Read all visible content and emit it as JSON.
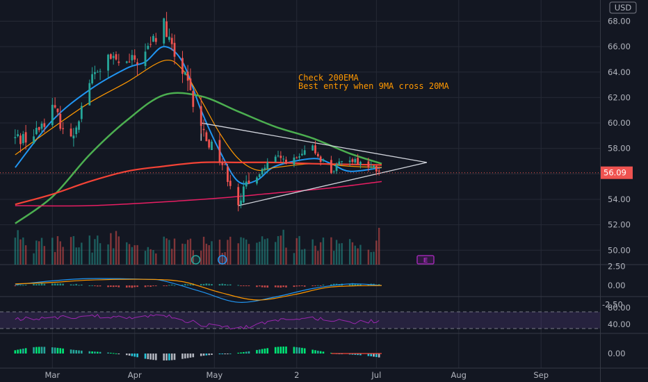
{
  "currency_label": "USD",
  "last_price_label": "56.09",
  "annotations": [
    "Check 200EMA",
    "Best entry when 9MA cross 20MA"
  ],
  "event_badges": [
    "E"
  ],
  "colors": {
    "background": "#131722",
    "grid": "#262a36",
    "up": "#26a69a",
    "down": "#ef5350",
    "ema9": "#2196f3",
    "ema20": "#ff9800",
    "ma50": "#4caf50",
    "ma100": "#f44336",
    "ma200": "#e91e63",
    "triangle": "#d1d4dc",
    "macd_line": "#2196f3",
    "signal_line": "#ff9800",
    "rsi": "#9c27b0",
    "annotation": "#ff9800",
    "event": "#9c27b0"
  },
  "chart_data": [
    {
      "type": "candlestick",
      "title": "",
      "x_tick_labels": [
        "Mar",
        "Apr",
        "May",
        "2",
        "Jul",
        "Aug",
        "Sep"
      ],
      "y_tick_labels": [
        "68.00",
        "66.00",
        "64.00",
        "62.00",
        "60.00",
        "58.00",
        "56.00",
        "54.00",
        "52.00",
        "50.00"
      ],
      "ylim": [
        49.2,
        69.5
      ],
      "last_price": 56.09,
      "grid": true,
      "anchors": [
        {
          "date": "Feb 15",
          "close": 58.8
        },
        {
          "date": "Feb 22",
          "close": 59.0
        },
        {
          "date": "Mar 1",
          "close": 61.2
        },
        {
          "date": "Mar 8",
          "close": 58.6
        },
        {
          "date": "Mar 15",
          "close": 63.3
        },
        {
          "date": "Mar 22",
          "close": 65.0
        },
        {
          "date": "Mar 29",
          "close": 64.6
        },
        {
          "date": "Apr 5",
          "close": 65.4
        },
        {
          "date": "Apr 12",
          "close": 67.8
        },
        {
          "date": "Apr 14",
          "close": 66.2
        },
        {
          "date": "Apr 19",
          "close": 64.0
        },
        {
          "date": "Apr 26",
          "close": 59.5
        },
        {
          "date": "May 3",
          "close": 57.3
        },
        {
          "date": "May 10",
          "close": 54.0
        },
        {
          "date": "May 17",
          "close": 56.0
        },
        {
          "date": "May 24",
          "close": 57.2
        },
        {
          "date": "May 31",
          "close": 57.0
        },
        {
          "date": "Jun 7",
          "close": 58.0
        },
        {
          "date": "Jun 14",
          "close": 56.2
        },
        {
          "date": "Jun 21",
          "close": 57.3
        },
        {
          "date": "Jun 28",
          "close": 56.6
        },
        {
          "date": "Jul 3",
          "close": 56.1
        }
      ],
      "overlays": [
        {
          "name": "",
          "type": "ema9",
          "color": "#2196f3",
          "points": [
            [
              "Feb 15",
              56.5
            ],
            [
              "Mar 1",
              60.2
            ],
            [
              "Mar 15",
              62.6
            ],
            [
              "Mar 29",
              64.3
            ],
            [
              "Apr 5",
              64.8
            ],
            [
              "Apr 12",
              66.0
            ],
            [
              "Apr 19",
              64.8
            ],
            [
              "Apr 26",
              61.0
            ],
            [
              "May 3",
              57.8
            ],
            [
              "May 10",
              55.4
            ],
            [
              "May 17",
              55.5
            ],
            [
              "May 24",
              56.6
            ],
            [
              "Jun 7",
              57.2
            ],
            [
              "Jun 14",
              56.8
            ],
            [
              "Jun 21",
              56.2
            ],
            [
              "Jul 3",
              56.5
            ]
          ]
        },
        {
          "name": "",
          "type": "ema20",
          "color": "#ff9800",
          "points": [
            [
              "Feb 15",
              57.5
            ],
            [
              "Mar 1",
              59.6
            ],
            [
              "Mar 15",
              61.6
            ],
            [
              "Mar 29",
              63.2
            ],
            [
              "Apr 12",
              64.9
            ],
            [
              "Apr 19",
              64.2
            ],
            [
              "Apr 26",
              61.8
            ],
            [
              "May 3",
              59.2
            ],
            [
              "May 10",
              57.2
            ],
            [
              "May 17",
              56.3
            ],
            [
              "May 24",
              56.5
            ],
            [
              "Jun 7",
              56.8
            ],
            [
              "Jun 21",
              56.6
            ],
            [
              "Jul 3",
              56.5
            ]
          ]
        },
        {
          "name": "",
          "type": "ma50",
          "color": "#4caf50",
          "points": [
            [
              "Feb 15",
              52.1
            ],
            [
              "Mar 1",
              54.2
            ],
            [
              "Mar 15",
              57.5
            ],
            [
              "Mar 29",
              60.2
            ],
            [
              "Apr 12",
              62.2
            ],
            [
              "Apr 26",
              62.1
            ],
            [
              "May 10",
              60.9
            ],
            [
              "May 24",
              59.7
            ],
            [
              "Jun 7",
              58.8
            ],
            [
              "Jun 21",
              57.6
            ],
            [
              "Jul 3",
              56.8
            ]
          ]
        },
        {
          "name": "",
          "type": "ma100",
          "color": "#f44336",
          "points": [
            [
              "Feb 15",
              53.6
            ],
            [
              "Mar 1",
              54.4
            ],
            [
              "Mar 15",
              55.4
            ],
            [
              "Mar 29",
              56.2
            ],
            [
              "Apr 12",
              56.6
            ],
            [
              "Apr 26",
              56.9
            ],
            [
              "May 10",
              56.9
            ],
            [
              "May 24",
              56.9
            ],
            [
              "Jun 7",
              56.8
            ],
            [
              "Jul 3",
              56.7
            ]
          ]
        },
        {
          "name": "",
          "type": "ma200",
          "color": "#e91e63",
          "points": [
            [
              "Feb 15",
              53.5
            ],
            [
              "Mar 15",
              53.5
            ],
            [
              "Apr 12",
              53.8
            ],
            [
              "May 3",
              54.1
            ],
            [
              "May 24",
              54.5
            ],
            [
              "Jun 14",
              54.9
            ],
            [
              "Jul 3",
              55.4
            ]
          ]
        }
      ],
      "triangle": {
        "upper": [
          [
            "Apr 26",
            60.0
          ],
          [
            "Jul 20",
            56.9
          ]
        ],
        "lower": [
          [
            "May 10",
            53.5
          ],
          [
            "Jul 20",
            56.9
          ]
        ]
      }
    },
    {
      "type": "line",
      "title": "",
      "y_tick_labels": [
        "2.50",
        "0.00",
        "-2.50"
      ],
      "series": [
        {
          "name": "",
          "color": "#2196f3",
          "points": [
            [
              "Feb 15",
              0.1
            ],
            [
              "Mar 1",
              0.6
            ],
            [
              "Mar 15",
              0.9
            ],
            [
              "Apr 5",
              0.8
            ],
            [
              "Apr 12",
              0.6
            ],
            [
              "Apr 26",
              -0.8
            ],
            [
              "May 10",
              -2.2
            ],
            [
              "May 24",
              -1.5
            ],
            [
              "Jun 7",
              -0.4
            ],
            [
              "Jun 21",
              0.2
            ],
            [
              "Jul 3",
              0.0
            ]
          ]
        },
        {
          "name": "",
          "color": "#ff9800",
          "points": [
            [
              "Feb 15",
              0.2
            ],
            [
              "Mar 1",
              0.4
            ],
            [
              "Mar 15",
              0.7
            ],
            [
              "Apr 5",
              0.8
            ],
            [
              "Apr 19",
              0.5
            ],
            [
              "May 3",
              -0.9
            ],
            [
              "May 17",
              -1.9
            ],
            [
              "May 31",
              -1.2
            ],
            [
              "Jun 14",
              -0.2
            ],
            [
              "Jul 3",
              0.0
            ]
          ]
        }
      ]
    },
    {
      "type": "line",
      "title": "",
      "y_tick_labels": [
        "80.00",
        "40.00"
      ],
      "series": [
        {
          "name": "",
          "color": "#9c27b0",
          "points": [
            [
              "Feb 15",
              52
            ],
            [
              "Mar 1",
              56
            ],
            [
              "Mar 15",
              60
            ],
            [
              "Apr 5",
              58
            ],
            [
              "Apr 12",
              63
            ],
            [
              "Apr 26",
              40
            ],
            [
              "May 10",
              30
            ],
            [
              "May 24",
              48
            ],
            [
              "Jun 7",
              55
            ],
            [
              "Jun 21",
              46
            ],
            [
              "Jul 3",
              48
            ]
          ]
        }
      ]
    },
    {
      "type": "bar",
      "title": "",
      "y_tick_labels": [
        "0.00"
      ]
    }
  ]
}
